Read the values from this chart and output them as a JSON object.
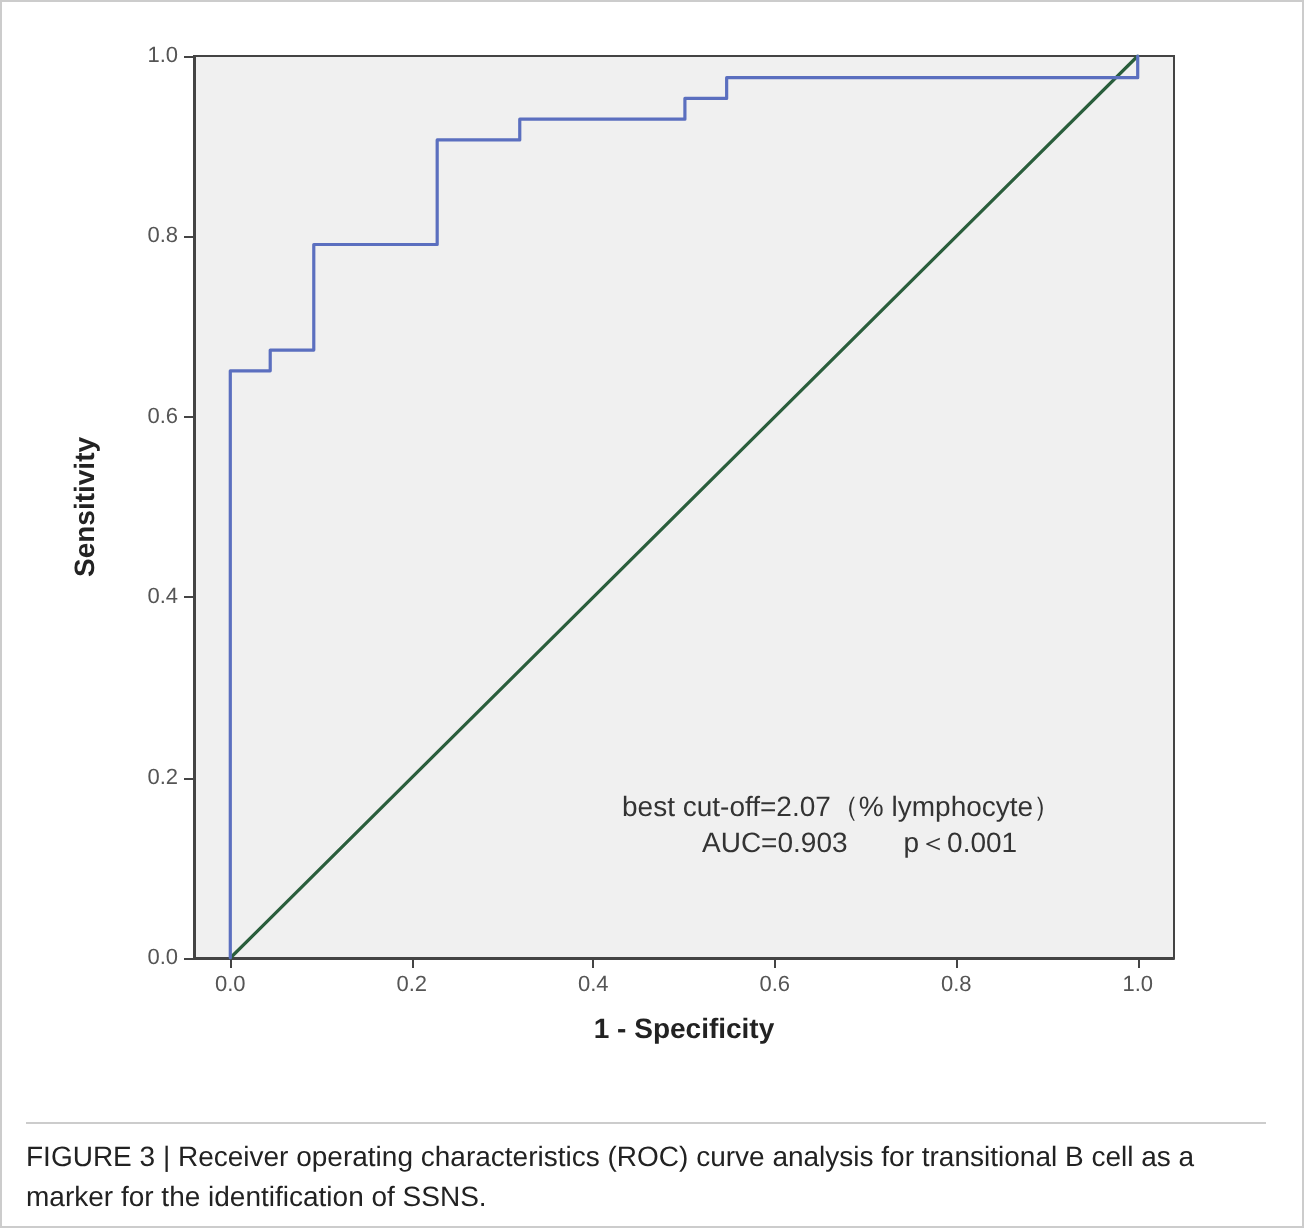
{
  "chart_data": {
    "type": "step",
    "xlabel": "1 - Specificity",
    "ylabel": "Sensitivity",
    "xlim": [
      -0.04,
      1.04
    ],
    "xticks": [
      {
        "value": 0,
        "label": "0.0"
      },
      {
        "value": 0.2,
        "label": "0.2"
      },
      {
        "value": 0.4,
        "label": "0.4"
      },
      {
        "value": 0.6,
        "label": "0.6"
      },
      {
        "value": 0.8,
        "label": "0.8"
      },
      {
        "value": 1,
        "label": "1.0"
      }
    ],
    "ylim": [
      0,
      1
    ],
    "yticks": [
      {
        "value": 0,
        "label": "0.0"
      },
      {
        "value": 0.2,
        "label": "0.2"
      },
      {
        "value": 0.4,
        "label": "0.4"
      },
      {
        "value": 0.6,
        "label": "0.6"
      },
      {
        "value": 0.8,
        "label": "0.8"
      },
      {
        "value": 1,
        "label": "1.0"
      }
    ],
    "series": [
      {
        "color": "#5b6fbf",
        "x": [
          0,
          0,
          0.044,
          0.092,
          0.228,
          0.319,
          0.501,
          0.547,
          1
        ],
        "values": [
          0,
          0.651,
          0.674,
          0.791,
          0.907,
          0.93,
          0.953,
          0.976,
          1
        ]
      },
      {
        "type": "line",
        "color": "#2a5e3c",
        "x": [
          0,
          1
        ],
        "values": [
          0,
          1
        ]
      }
    ],
    "grid": false,
    "marker": "none",
    "line_style": "solid",
    "annotations": [
      "best cut-off=2.07（% lymphocyte）",
      "AUC=0.903　　p＜0.001",
      "FIGURE 3 | Receiver operating characteristics (ROC) curve analysis for transitional B cell as a marker for the identification of SSNS."
    ]
  }
}
